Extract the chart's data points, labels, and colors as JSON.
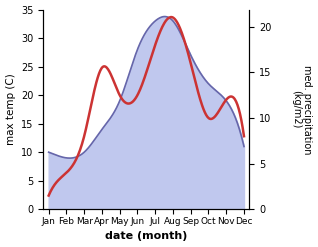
{
  "months": [
    "Jan",
    "Feb",
    "Mar",
    "Apr",
    "May",
    "Jun",
    "Jul",
    "Aug",
    "Sep",
    "Oct",
    "Nov",
    "Dec"
  ],
  "x": [
    0,
    1,
    2,
    3,
    4,
    5,
    6,
    7,
    8,
    9,
    10,
    11
  ],
  "max_temp": [
    10,
    9,
    10,
    14,
    19,
    28,
    33,
    33,
    27,
    22,
    19,
    11
  ],
  "precipitation": [
    1.5,
    4,
    8,
    15.5,
    12.5,
    12.5,
    18,
    21,
    16,
    10,
    12,
    8
  ],
  "temp_line_color": "#6666aa",
  "temp_fill_color": "#c0c8ee",
  "precip_color": "#cc3333",
  "temp_ylim": [
    0,
    35
  ],
  "precip_ylim": [
    0,
    21.875
  ],
  "precip_right_ticks": [
    0,
    5,
    10,
    15,
    20
  ],
  "temp_left_ticks": [
    0,
    5,
    10,
    15,
    20,
    25,
    30,
    35
  ],
  "xlabel": "date (month)",
  "ylabel_left": "max temp (C)",
  "ylabel_right": "med. precipitation\n(kg/m2)",
  "figsize": [
    3.18,
    2.47
  ],
  "dpi": 100
}
